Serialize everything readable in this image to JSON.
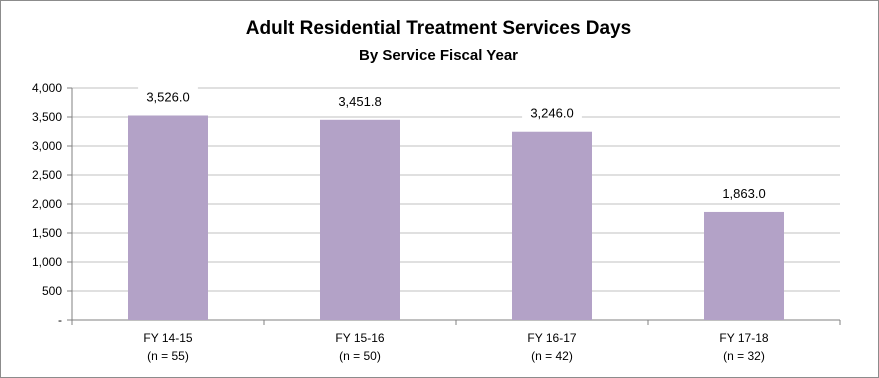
{
  "chart_data": {
    "type": "bar",
    "title": "Adult Residential Treatment Services Days",
    "subtitle": "By Service Fiscal Year",
    "categories": [
      "FY 14-15",
      "FY 15-16",
      "FY 16-17",
      "FY 17-18"
    ],
    "category_notes": [
      "(n = 55)",
      "(n = 50)",
      "(n = 42)",
      "(n = 32)"
    ],
    "values": [
      3526.0,
      3451.8,
      3246.0,
      1863.0
    ],
    "value_labels": [
      "3,526.0",
      "3,451.8",
      "3,246.0",
      "1,863.0"
    ],
    "ylim": [
      0,
      4000
    ],
    "yticks": [
      0,
      500,
      1000,
      1500,
      2000,
      2500,
      3000,
      3500,
      4000
    ],
    "ytick_labels": [
      "-",
      "500",
      "1,000",
      "1,500",
      "2,000",
      "2,500",
      "3,000",
      "3,500",
      "4,000"
    ],
    "grid": true,
    "legend": "none",
    "bar_color": "#b3a2c7",
    "grid_color": "#c0c0c0"
  }
}
